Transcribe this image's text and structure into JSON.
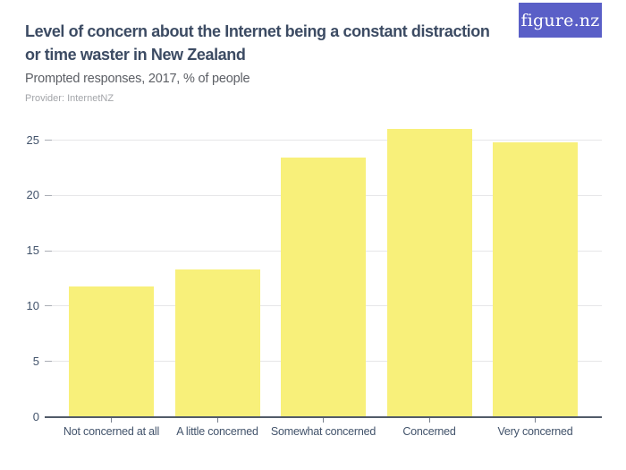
{
  "header": {
    "title_line1": "Level of concern about the Internet being a constant distraction",
    "title_line2": "or time waster in New Zealand",
    "subtitle": "Prompted responses, 2017, % of people",
    "provider": "Provider: InternetNZ",
    "logo_text": "figure.nz"
  },
  "colors": {
    "background": "#ffffff",
    "bar_fill": "#f8f07a",
    "logo_bg": "#5a5fc7",
    "logo_text": "#ffffff",
    "title_text": "#3c4b63",
    "subtitle_text": "#5d6066",
    "provider_text": "#a3a5a9",
    "axis_text": "#42536b",
    "gridline": "#e6e6e8",
    "ytick_mark": "#a9adb4",
    "axis_line": "#525b69",
    "xtick_mark": "#7a828e"
  },
  "chart_data": {
    "type": "bar",
    "title": "Level of concern about the Internet being a constant distraction or time waster in New Zealand",
    "subtitle": "Prompted responses, 2017, % of people",
    "provider": "InternetNZ",
    "categories": [
      "Not concerned at all",
      "A little concerned",
      "Somewhat concerned",
      "Concerned",
      "Very concerned"
    ],
    "values": [
      11.8,
      13.3,
      23.4,
      26,
      24.8
    ],
    "unit": "% of people",
    "xlabel": "",
    "ylabel": "",
    "ylim": [
      0,
      26.5
    ],
    "yticks": [
      0,
      5,
      10,
      15,
      20,
      25
    ],
    "grid": true,
    "legend": false,
    "bar_color": "#f8f07a"
  }
}
